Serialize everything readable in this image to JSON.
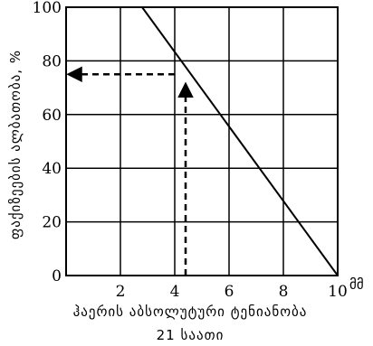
{
  "chart_data": {
    "type": "line",
    "xlabel": "ჰაერის აბსოლუტური ტენიანობა",
    "xlabel_line2": "21 საათი",
    "x_unit": "მმ",
    "ylabel": "ფაქიზეების ალბათობა, %",
    "xlim": [
      0,
      10
    ],
    "ylim": [
      0,
      100
    ],
    "x_ticks": [
      {
        "value": 2,
        "label": "2"
      },
      {
        "value": 4,
        "label": "4"
      },
      {
        "value": 6,
        "label": "6"
      },
      {
        "value": 8,
        "label": "8"
      },
      {
        "value": 10,
        "label": "10"
      }
    ],
    "y_ticks": [
      {
        "value": 0,
        "label": "0"
      },
      {
        "value": 20,
        "label": "20"
      },
      {
        "value": 40,
        "label": "40"
      },
      {
        "value": 60,
        "label": "60"
      },
      {
        "value": 80,
        "label": "80"
      },
      {
        "value": 100,
        "label": "100"
      }
    ],
    "grid": true,
    "series": [
      {
        "x": [
          2.8,
          10
        ],
        "y": [
          100,
          0
        ]
      }
    ],
    "annotation": {
      "type": "dashed-arrows",
      "x_value": 4.4,
      "y_value": 75
    }
  }
}
